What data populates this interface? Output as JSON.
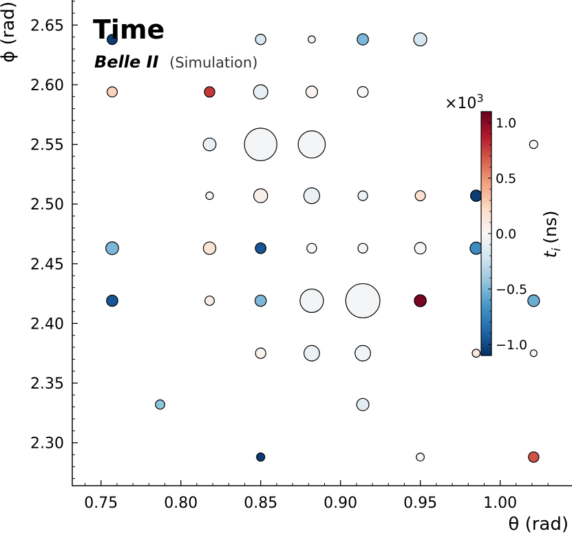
{
  "chart_data": {
    "type": "scatter",
    "title": "Time",
    "subtitle_bold": "Belle II",
    "subtitle_note": "(Simulation)",
    "xlabel": "θ (rad)",
    "ylabel": "ϕ (rad)",
    "xlim": [
      0.732,
      1.045
    ],
    "ylim": [
      2.671,
      2.264
    ],
    "y_inverted": true,
    "xticks": [
      0.75,
      0.8,
      0.85,
      0.9,
      0.95,
      1.0
    ],
    "xtick_labels": [
      "0.75",
      "0.80",
      "0.85",
      "0.90",
      "0.95",
      "1.00"
    ],
    "yticks": [
      2.3,
      2.35,
      2.4,
      2.45,
      2.5,
      2.55,
      2.6,
      2.65
    ],
    "ytick_labels": [
      "2.30",
      "2.35",
      "2.40",
      "2.45",
      "2.50",
      "2.55",
      "2.60",
      "2.65"
    ],
    "grid": false,
    "colormap": "RdBu_r",
    "colorbar": {
      "label": "t_i (ns)",
      "label_main": "t",
      "label_sub": "i",
      "label_unit": "(ns)",
      "range": [
        -1.1,
        1.1
      ],
      "multiplier": "×10",
      "multiplier_exp": "3",
      "ticks": [
        -1.0,
        -0.5,
        0.0,
        0.5,
        1.0
      ],
      "tick_labels": [
        "−1.0",
        "−0.5",
        "0.0",
        "0.5",
        "1.0"
      ]
    },
    "point_size_note": "marker area encodes a per-point magnitude (relative units)",
    "points": [
      {
        "x": 0.85,
        "y": 2.288,
        "c": -1.05,
        "s": 0.3
      },
      {
        "x": 0.95,
        "y": 2.288,
        "c": 0.02,
        "s": 0.28
      },
      {
        "x": 1.021,
        "y": 2.288,
        "c": 0.7,
        "s": 0.48
      },
      {
        "x": 0.787,
        "y": 2.332,
        "c": -0.45,
        "s": 0.38
      },
      {
        "x": 0.914,
        "y": 2.332,
        "c": -0.12,
        "s": 0.65
      },
      {
        "x": 0.85,
        "y": 2.375,
        "c": 0.05,
        "s": 0.48
      },
      {
        "x": 0.882,
        "y": 2.375,
        "c": -0.07,
        "s": 1.05
      },
      {
        "x": 0.914,
        "y": 2.375,
        "c": -0.04,
        "s": 1.05
      },
      {
        "x": 0.985,
        "y": 2.375,
        "c": 0.12,
        "s": 0.28
      },
      {
        "x": 1.021,
        "y": 2.375,
        "c": 0.0,
        "s": 0.2
      },
      {
        "x": 0.757,
        "y": 2.419,
        "c": -0.95,
        "s": 0.55
      },
      {
        "x": 0.818,
        "y": 2.419,
        "c": 0.08,
        "s": 0.38
      },
      {
        "x": 0.85,
        "y": 2.419,
        "c": -0.5,
        "s": 0.55
      },
      {
        "x": 0.882,
        "y": 2.419,
        "c": -0.03,
        "s": 2.4
      },
      {
        "x": 0.914,
        "y": 2.419,
        "c": -0.02,
        "s": 5.1
      },
      {
        "x": 0.95,
        "y": 2.419,
        "c": 1.05,
        "s": 0.62
      },
      {
        "x": 1.021,
        "y": 2.419,
        "c": -0.55,
        "s": 0.6
      },
      {
        "x": 0.757,
        "y": 2.463,
        "c": -0.5,
        "s": 0.72
      },
      {
        "x": 0.818,
        "y": 2.463,
        "c": 0.15,
        "s": 0.68
      },
      {
        "x": 0.85,
        "y": 2.463,
        "c": -0.95,
        "s": 0.5
      },
      {
        "x": 0.882,
        "y": 2.463,
        "c": -0.02,
        "s": 0.42
      },
      {
        "x": 0.914,
        "y": 2.463,
        "c": -0.03,
        "s": 0.42
      },
      {
        "x": 0.95,
        "y": 2.463,
        "c": -0.02,
        "s": 0.58
      },
      {
        "x": 0.985,
        "y": 2.463,
        "c": -0.7,
        "s": 0.65
      },
      {
        "x": 0.818,
        "y": 2.507,
        "c": 0.02,
        "s": 0.25
      },
      {
        "x": 0.85,
        "y": 2.507,
        "c": 0.07,
        "s": 0.85
      },
      {
        "x": 0.882,
        "y": 2.507,
        "c": -0.07,
        "s": 1.1
      },
      {
        "x": 0.914,
        "y": 2.507,
        "c": -0.07,
        "s": 0.4
      },
      {
        "x": 0.95,
        "y": 2.507,
        "c": 0.18,
        "s": 0.45
      },
      {
        "x": 0.985,
        "y": 2.507,
        "c": -1.05,
        "s": 0.55
      },
      {
        "x": 0.818,
        "y": 2.55,
        "c": -0.08,
        "s": 0.72
      },
      {
        "x": 0.85,
        "y": 2.55,
        "c": -0.02,
        "s": 4.6
      },
      {
        "x": 0.882,
        "y": 2.55,
        "c": -0.02,
        "s": 3.2
      },
      {
        "x": 1.021,
        "y": 2.55,
        "c": -0.01,
        "s": 0.3
      },
      {
        "x": 0.757,
        "y": 2.594,
        "c": 0.25,
        "s": 0.45
      },
      {
        "x": 0.818,
        "y": 2.594,
        "c": 0.78,
        "s": 0.48
      },
      {
        "x": 0.85,
        "y": 2.594,
        "c": -0.1,
        "s": 0.9
      },
      {
        "x": 0.882,
        "y": 2.594,
        "c": 0.03,
        "s": 0.6
      },
      {
        "x": 0.914,
        "y": 2.594,
        "c": 0.0,
        "s": 0.5
      },
      {
        "x": 0.757,
        "y": 2.638,
        "c": -1.05,
        "s": 0.45
      },
      {
        "x": 0.85,
        "y": 2.638,
        "c": -0.18,
        "s": 0.48
      },
      {
        "x": 0.882,
        "y": 2.638,
        "c": 0.0,
        "s": 0.22
      },
      {
        "x": 0.914,
        "y": 2.638,
        "c": -0.5,
        "s": 0.55
      },
      {
        "x": 0.95,
        "y": 2.638,
        "c": -0.2,
        "s": 0.75
      }
    ]
  }
}
